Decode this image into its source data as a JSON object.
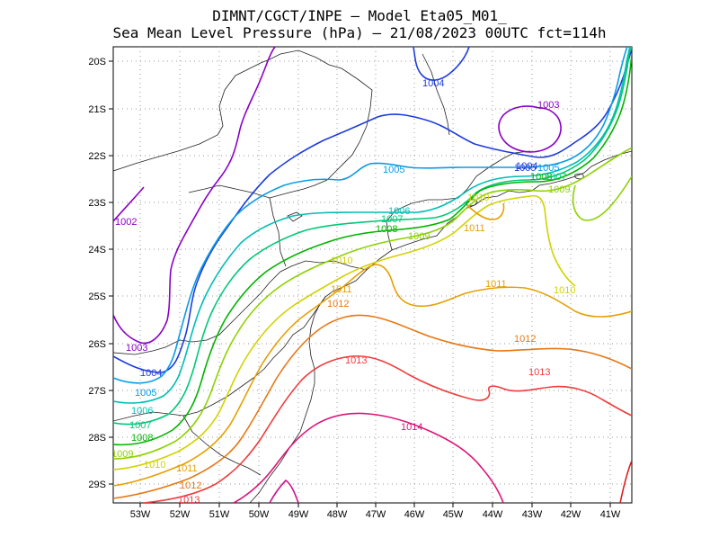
{
  "title": {
    "line1": "DIMNT/CGCT/INPE –  Model Eta05_M01_",
    "line2": "Sea Mean Level Pressure (hPa) – 21/08/2023 00UTC fct=114h"
  },
  "axes": {
    "lon_labels": [
      "53W",
      "52W",
      "51W",
      "50W",
      "49W",
      "48W",
      "47W",
      "46W",
      "45W",
      "44W",
      "43W",
      "42W",
      "41W"
    ],
    "lat_labels": [
      "20S",
      "21S",
      "22S",
      "23S",
      "24S",
      "25S",
      "26S",
      "27S",
      "28S",
      "29S"
    ]
  },
  "isobars": [
    {
      "value": "1002",
      "color": "#8a00c8",
      "labels": [
        "1002"
      ]
    },
    {
      "value": "1003",
      "color": "#8a00c8",
      "labels": [
        "1003",
        "1003"
      ]
    },
    {
      "value": "1004",
      "color": "#1e3cdc",
      "labels": [
        "1004",
        "1004",
        "1004"
      ]
    },
    {
      "value": "1005",
      "color": "#0a9ce6",
      "labels": [
        "1005",
        "1005",
        "1005"
      ]
    },
    {
      "value": "1006",
      "color": "#00beb4",
      "labels": [
        "1006",
        "1006"
      ]
    },
    {
      "value": "1007",
      "color": "#00c878",
      "labels": [
        "1007",
        "1007"
      ]
    },
    {
      "value": "1008",
      "color": "#00b400",
      "labels": [
        "1008",
        "1008",
        "1008"
      ]
    },
    {
      "value": "1009",
      "color": "#8cd200",
      "labels": [
        "1009",
        "1009",
        "1009"
      ]
    },
    {
      "value": "1010",
      "color": "#d2d200",
      "labels": [
        "1010",
        "1010",
        "1010",
        "1010"
      ]
    },
    {
      "value": "1011",
      "color": "#e6a000",
      "labels": [
        "1011",
        "1011",
        "1011",
        "1011"
      ]
    },
    {
      "value": "1012",
      "color": "#e67814",
      "labels": [
        "1012",
        "1012",
        "1012"
      ]
    },
    {
      "value": "1013",
      "color": "#f03c3c",
      "labels": [
        "1013",
        "1013",
        "1013"
      ]
    },
    {
      "value": "1014",
      "color": "#dc1478",
      "labels": [
        "1014"
      ]
    },
    {
      "value": "1015",
      "color": "#c8148c",
      "labels": []
    }
  ],
  "extra_labels": [
    "1005",
    "1007"
  ]
}
